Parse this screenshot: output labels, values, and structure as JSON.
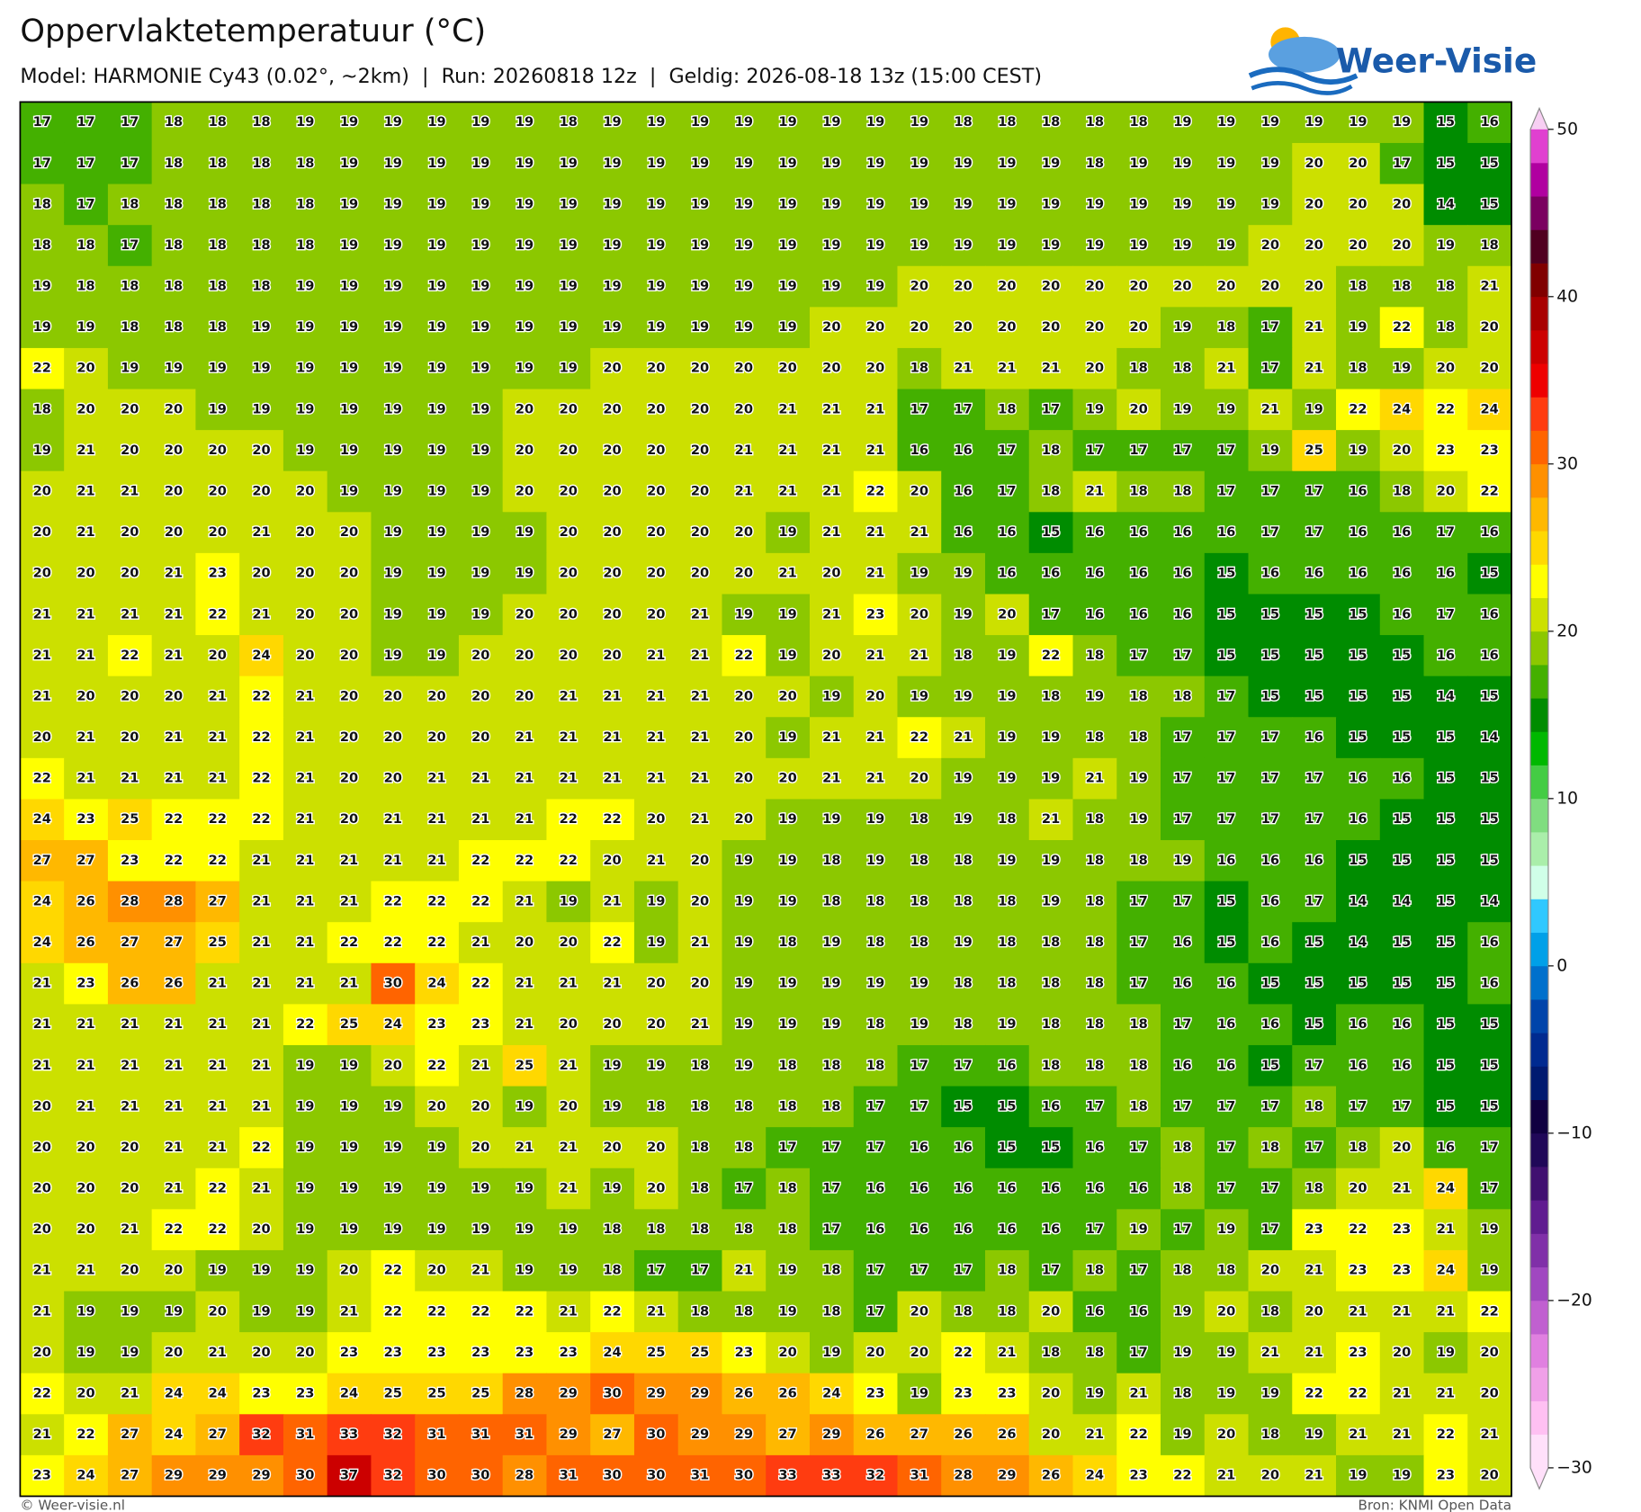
{
  "header": {
    "title": "Oppervlaktetemperatuur (°C)",
    "subtitle": "Model: HARMONIE Cy43 (0.02°, ~2km)  |  Run: 20260818 12z  |  Geldig: 2026-08-18 13z (15:00 CEST)",
    "logo": "Weer-Visie"
  },
  "map": {
    "type": "grid",
    "values": [
      [
        17,
        17,
        17,
        18,
        18,
        18,
        19,
        19,
        19,
        19,
        19,
        19,
        18,
        19,
        19,
        19,
        19,
        19,
        19,
        19,
        19,
        18,
        18,
        18,
        18,
        18,
        19,
        19,
        19,
        19,
        19,
        19,
        15,
        16
      ],
      [
        17,
        17,
        17,
        18,
        18,
        18,
        18,
        19,
        19,
        19,
        19,
        19,
        19,
        19,
        19,
        19,
        19,
        19,
        19,
        19,
        19,
        19,
        19,
        19,
        18,
        19,
        19,
        19,
        19,
        20,
        20,
        17,
        15,
        15
      ],
      [
        18,
        17,
        18,
        18,
        18,
        18,
        18,
        19,
        19,
        19,
        19,
        19,
        19,
        19,
        19,
        19,
        19,
        19,
        19,
        19,
        19,
        19,
        19,
        19,
        19,
        19,
        19,
        19,
        19,
        20,
        20,
        20,
        14,
        15
      ],
      [
        18,
        18,
        17,
        18,
        18,
        18,
        18,
        19,
        19,
        19,
        19,
        19,
        19,
        19,
        19,
        19,
        19,
        19,
        19,
        19,
        19,
        19,
        19,
        19,
        19,
        19,
        19,
        19,
        20,
        20,
        20,
        20,
        19,
        18
      ],
      [
        19,
        18,
        18,
        18,
        18,
        18,
        19,
        19,
        19,
        19,
        19,
        19,
        19,
        19,
        19,
        19,
        19,
        19,
        19,
        19,
        20,
        20,
        20,
        20,
        20,
        20,
        20,
        20,
        20,
        20,
        18,
        18,
        18,
        21
      ],
      [
        19,
        19,
        18,
        18,
        18,
        19,
        19,
        19,
        19,
        19,
        19,
        19,
        19,
        19,
        19,
        19,
        19,
        19,
        20,
        20,
        20,
        20,
        20,
        20,
        20,
        20,
        19,
        18,
        17,
        21,
        19,
        22,
        18,
        20
      ],
      [
        22,
        20,
        19,
        19,
        19,
        19,
        19,
        19,
        19,
        19,
        19,
        19,
        19,
        20,
        20,
        20,
        20,
        20,
        20,
        20,
        18,
        21,
        21,
        21,
        20,
        18,
        18,
        21,
        17,
        21,
        18,
        19,
        20,
        20
      ],
      [
        18,
        20,
        20,
        20,
        19,
        19,
        19,
        19,
        19,
        19,
        19,
        20,
        20,
        20,
        20,
        20,
        20,
        21,
        21,
        21,
        17,
        17,
        18,
        17,
        19,
        20,
        19,
        19,
        21,
        19,
        22,
        24,
        22,
        24
      ],
      [
        19,
        21,
        20,
        20,
        20,
        20,
        19,
        19,
        19,
        19,
        19,
        20,
        20,
        20,
        20,
        20,
        21,
        21,
        21,
        21,
        16,
        16,
        17,
        18,
        17,
        17,
        17,
        17,
        19,
        25,
        19,
        20,
        23,
        23
      ],
      [
        20,
        21,
        21,
        20,
        20,
        20,
        20,
        19,
        19,
        19,
        19,
        20,
        20,
        20,
        20,
        20,
        21,
        21,
        21,
        22,
        20,
        16,
        17,
        18,
        21,
        18,
        18,
        17,
        17,
        17,
        16,
        18,
        20,
        22
      ],
      [
        20,
        21,
        20,
        20,
        20,
        21,
        20,
        20,
        19,
        19,
        19,
        19,
        20,
        20,
        20,
        20,
        20,
        19,
        21,
        21,
        21,
        16,
        16,
        15,
        16,
        16,
        16,
        16,
        17,
        17,
        16,
        16,
        17,
        16
      ],
      [
        20,
        20,
        20,
        21,
        23,
        20,
        20,
        20,
        19,
        19,
        19,
        19,
        20,
        20,
        20,
        20,
        20,
        21,
        20,
        21,
        19,
        19,
        16,
        16,
        16,
        16,
        16,
        15,
        16,
        16,
        16,
        16,
        16,
        15
      ],
      [
        21,
        21,
        21,
        21,
        22,
        21,
        20,
        20,
        19,
        19,
        19,
        20,
        20,
        20,
        20,
        21,
        19,
        19,
        21,
        23,
        20,
        19,
        20,
        17,
        16,
        16,
        16,
        15,
        15,
        15,
        15,
        16,
        17,
        16
      ],
      [
        21,
        21,
        22,
        21,
        20,
        24,
        20,
        20,
        19,
        19,
        20,
        20,
        20,
        20,
        21,
        21,
        22,
        19,
        20,
        21,
        21,
        18,
        19,
        22,
        18,
        17,
        17,
        15,
        15,
        15,
        15,
        15,
        16,
        16
      ],
      [
        21,
        20,
        20,
        20,
        21,
        22,
        21,
        20,
        20,
        20,
        20,
        20,
        21,
        21,
        21,
        21,
        20,
        20,
        19,
        20,
        19,
        19,
        19,
        18,
        19,
        18,
        18,
        17,
        15,
        15,
        15,
        15,
        14,
        15
      ],
      [
        20,
        21,
        20,
        21,
        21,
        22,
        21,
        20,
        20,
        20,
        20,
        21,
        21,
        21,
        21,
        21,
        20,
        19,
        21,
        21,
        22,
        21,
        19,
        19,
        18,
        18,
        17,
        17,
        17,
        16,
        15,
        15,
        15,
        14
      ],
      [
        22,
        21,
        21,
        21,
        21,
        22,
        21,
        20,
        20,
        21,
        21,
        21,
        21,
        21,
        21,
        21,
        20,
        20,
        21,
        21,
        20,
        19,
        19,
        19,
        21,
        19,
        17,
        17,
        17,
        17,
        16,
        16,
        15,
        15
      ],
      [
        24,
        23,
        25,
        22,
        22,
        22,
        21,
        20,
        21,
        21,
        21,
        21,
        22,
        22,
        20,
        21,
        20,
        19,
        19,
        19,
        18,
        19,
        18,
        21,
        18,
        19,
        17,
        17,
        17,
        17,
        16,
        15,
        15,
        15
      ],
      [
        27,
        27,
        23,
        22,
        22,
        21,
        21,
        21,
        21,
        21,
        22,
        22,
        22,
        20,
        21,
        20,
        19,
        19,
        18,
        19,
        18,
        18,
        19,
        19,
        18,
        18,
        19,
        16,
        16,
        16,
        15,
        15,
        15,
        15
      ],
      [
        24,
        26,
        28,
        28,
        27,
        21,
        21,
        21,
        22,
        22,
        22,
        21,
        19,
        21,
        19,
        20,
        19,
        19,
        18,
        18,
        18,
        18,
        18,
        19,
        18,
        17,
        17,
        15,
        16,
        17,
        14,
        14,
        15,
        14
      ],
      [
        24,
        26,
        27,
        27,
        25,
        21,
        21,
        22,
        22,
        22,
        21,
        20,
        20,
        22,
        19,
        21,
        19,
        18,
        19,
        18,
        18,
        19,
        18,
        18,
        18,
        17,
        16,
        15,
        16,
        15,
        14,
        15,
        15,
        16
      ],
      [
        21,
        23,
        26,
        26,
        21,
        21,
        21,
        21,
        30,
        24,
        22,
        21,
        21,
        21,
        20,
        20,
        19,
        19,
        19,
        19,
        19,
        18,
        18,
        18,
        18,
        17,
        16,
        16,
        15,
        15,
        15,
        15,
        15,
        16
      ],
      [
        21,
        21,
        21,
        21,
        21,
        21,
        22,
        25,
        24,
        23,
        23,
        21,
        20,
        20,
        20,
        21,
        19,
        19,
        19,
        18,
        19,
        18,
        19,
        18,
        18,
        18,
        17,
        16,
        16,
        15,
        16,
        16,
        15,
        15
      ],
      [
        21,
        21,
        21,
        21,
        21,
        21,
        19,
        19,
        20,
        22,
        21,
        25,
        21,
        19,
        19,
        18,
        19,
        18,
        18,
        18,
        17,
        17,
        16,
        18,
        18,
        18,
        16,
        16,
        15,
        17,
        16,
        16,
        15,
        15
      ],
      [
        20,
        21,
        21,
        21,
        21,
        21,
        19,
        19,
        19,
        20,
        20,
        19,
        20,
        19,
        18,
        18,
        18,
        18,
        18,
        17,
        17,
        15,
        15,
        16,
        17,
        18,
        17,
        17,
        17,
        18,
        17,
        17,
        15,
        15
      ],
      [
        20,
        20,
        20,
        21,
        21,
        22,
        19,
        19,
        19,
        19,
        20,
        21,
        21,
        20,
        20,
        18,
        18,
        17,
        17,
        17,
        16,
        16,
        15,
        15,
        16,
        17,
        18,
        17,
        18,
        17,
        18,
        20,
        16,
        17
      ],
      [
        20,
        20,
        20,
        21,
        22,
        21,
        19,
        19,
        19,
        19,
        19,
        19,
        21,
        19,
        20,
        18,
        17,
        18,
        17,
        16,
        16,
        16,
        16,
        16,
        16,
        16,
        18,
        17,
        17,
        18,
        20,
        21,
        24,
        17
      ],
      [
        20,
        20,
        21,
        22,
        22,
        20,
        19,
        19,
        19,
        19,
        19,
        19,
        19,
        18,
        18,
        18,
        18,
        18,
        17,
        16,
        16,
        16,
        16,
        16,
        17,
        19,
        17,
        19,
        17,
        23,
        22,
        23,
        21,
        19
      ],
      [
        21,
        21,
        20,
        20,
        19,
        19,
        19,
        20,
        22,
        20,
        21,
        19,
        19,
        18,
        17,
        17,
        21,
        19,
        18,
        17,
        17,
        17,
        18,
        17,
        18,
        17,
        18,
        18,
        20,
        21,
        23,
        23,
        24,
        19
      ],
      [
        21,
        19,
        19,
        19,
        20,
        19,
        19,
        21,
        22,
        22,
        22,
        22,
        21,
        22,
        21,
        18,
        18,
        19,
        18,
        17,
        20,
        18,
        18,
        20,
        16,
        16,
        19,
        20,
        18,
        20,
        21,
        21,
        21,
        22
      ],
      [
        20,
        19,
        19,
        20,
        21,
        20,
        20,
        23,
        23,
        23,
        23,
        23,
        23,
        24,
        25,
        25,
        23,
        20,
        19,
        20,
        20,
        22,
        21,
        18,
        18,
        17,
        19,
        19,
        21,
        21,
        23,
        20,
        19,
        20
      ],
      [
        22,
        20,
        21,
        24,
        24,
        23,
        23,
        24,
        25,
        25,
        25,
        28,
        29,
        30,
        29,
        29,
        26,
        26,
        24,
        23,
        19,
        23,
        23,
        20,
        19,
        21,
        18,
        19,
        19,
        22,
        22,
        21,
        21,
        20
      ],
      [
        21,
        22,
        27,
        24,
        27,
        32,
        31,
        33,
        32,
        31,
        31,
        31,
        29,
        27,
        30,
        29,
        29,
        27,
        29,
        26,
        27,
        26,
        26,
        20,
        21,
        22,
        19,
        20,
        18,
        19,
        21,
        21,
        22,
        21
      ],
      [
        23,
        24,
        27,
        29,
        29,
        29,
        30,
        37,
        32,
        30,
        30,
        28,
        31,
        30,
        30,
        31,
        30,
        33,
        33,
        32,
        31,
        28,
        29,
        26,
        24,
        23,
        22,
        21,
        20,
        21,
        19,
        19,
        23,
        20
      ]
    ],
    "clim": [
      -30,
      50
    ],
    "cticks": [
      {
        "value": -30,
        "label": "−30"
      },
      {
        "value": -20,
        "label": "−20"
      },
      {
        "value": -10,
        "label": "−10"
      },
      0,
      10,
      20,
      30,
      40,
      50
    ],
    "colors": [
      "#ffe0fa",
      "#ffc0f2",
      "#f0a0e8",
      "#e080e0",
      "#c060d0",
      "#a048c0",
      "#8030a8",
      "#601c90",
      "#401070",
      "#200858",
      "#100040",
      "#001a70",
      "#002a90",
      "#0044aa",
      "#0070cc",
      "#00a0e8",
      "#30c8ff",
      "#d0ffe8",
      "#aaeeaa",
      "#80dd80",
      "#44cc44",
      "#00b800",
      "#008c00",
      "#44b000",
      "#8cc800",
      "#cce000",
      "#ffff00",
      "#ffd800",
      "#ffb800",
      "#ff9000",
      "#ff6400",
      "#ff3c10",
      "#ee0000",
      "#cc0000",
      "#a80000",
      "#800000",
      "#500020",
      "#7a0060",
      "#b000a0",
      "#e040d0"
    ]
  },
  "footer": {
    "left": "© Weer-visie.nl",
    "right": "Bron: KNMI Open Data"
  }
}
